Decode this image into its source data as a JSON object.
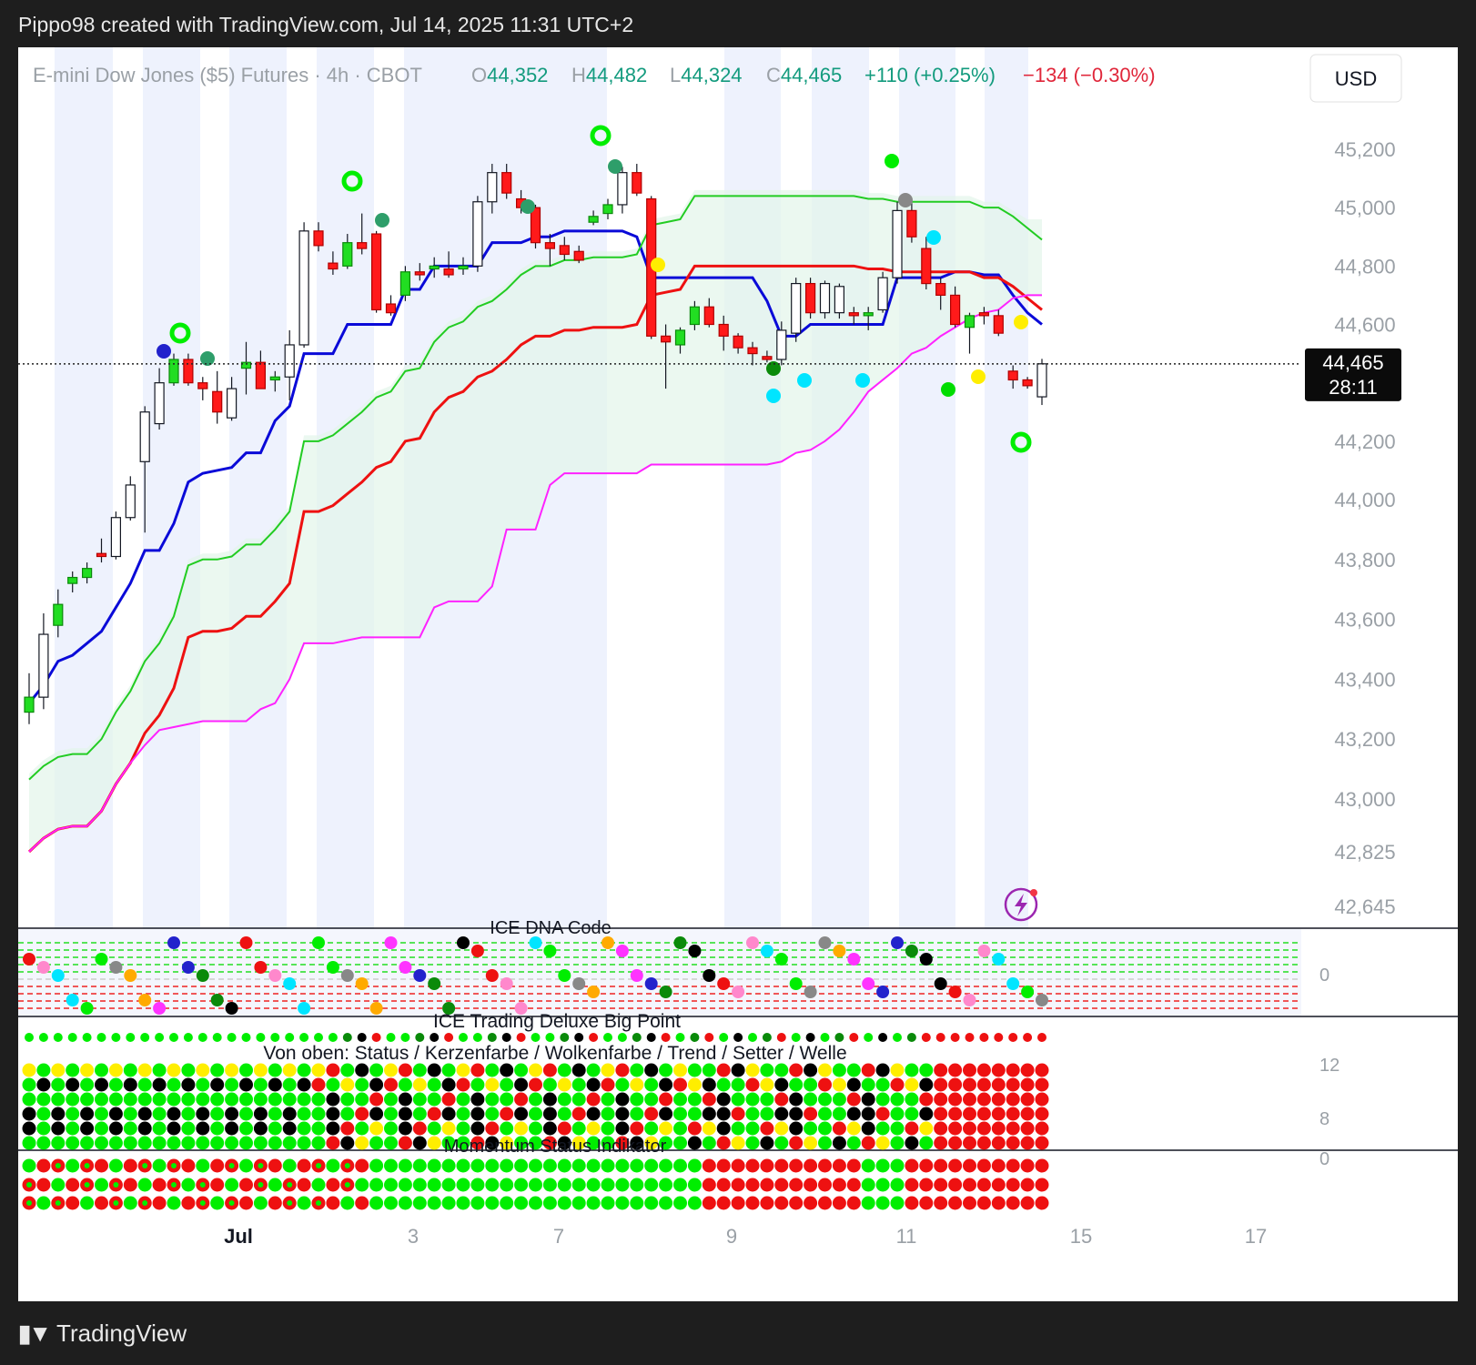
{
  "header": {
    "attribution": "Pippo98 created with TradingView.com, Jul 14, 2025 11:31 UTC+2"
  },
  "legend": {
    "symbol": "E-mini Dow Jones ($5) Futures · 4h · CBOT",
    "o_label": "O",
    "o_value": "44,352",
    "h_label": "H",
    "h_value": "44,482",
    "l_label": "L",
    "l_value": "44,324",
    "c_label": "C",
    "c_value": "44,465",
    "change": "+110 (+0.25%)",
    "change2": "−134 (−0.30%)"
  },
  "currency_button": "USD",
  "price_badge": {
    "price": "44,465",
    "countdown": "28:11"
  },
  "panes": {
    "dna_title": "ICE DNA Code",
    "dna_axis": "0",
    "bigpoint_title": "ICE Trading Deluxe Big Point",
    "bigpoint_subtitle": "Von oben: Status / Kerzenfarbe / Wolkenfarbe / Trend / Setter / Welle",
    "bigpoint_axis_top": "12",
    "bigpoint_axis_mid": "8",
    "bigpoint_axis_bottom": "0",
    "momentum_title": "Momentum Status Indikator"
  },
  "footer": {
    "brand": "TradingView"
  },
  "colors": {
    "up": "#22dd22",
    "down": "#ff1a1a",
    "neutral": "#ffffff",
    "kijun": "#0a0ad8",
    "tenkan_red": "#ee1111",
    "span_b": "#ff22ff",
    "green_line": "#22cc22",
    "weekend_band": "#eef2fd"
  },
  "chart_data": {
    "type": "candlestick",
    "symbol": "E-mini Dow Jones ($5) Futures",
    "interval": "4h",
    "ylim": [
      42645,
      45250
    ],
    "y_ticks": [
      "45,200",
      "45,000",
      "44,800",
      "44,600",
      "44,200",
      "44,000",
      "43,800",
      "43,600",
      "43,400",
      "43,200",
      "43,000",
      "42,825",
      "42,645"
    ],
    "x_ticks": [
      "Jul",
      "3",
      "7",
      "9",
      "11",
      "15",
      "17"
    ],
    "last_price": 44465,
    "candles": [
      {
        "o": 43290,
        "h": 43420,
        "l": 43250,
        "c": 43340
      },
      {
        "o": 43340,
        "h": 43620,
        "l": 43300,
        "c": 43550
      },
      {
        "o": 43580,
        "h": 43700,
        "l": 43540,
        "c": 43650
      },
      {
        "o": 43720,
        "h": 43760,
        "l": 43690,
        "c": 43740
      },
      {
        "o": 43740,
        "h": 43790,
        "l": 43720,
        "c": 43770
      },
      {
        "o": 43820,
        "h": 43870,
        "l": 43790,
        "c": 43810
      },
      {
        "o": 43810,
        "h": 43960,
        "l": 43800,
        "c": 43940
      },
      {
        "o": 43940,
        "h": 44080,
        "l": 43930,
        "c": 44050
      },
      {
        "o": 44130,
        "h": 44320,
        "l": 43890,
        "c": 44300
      },
      {
        "o": 44260,
        "h": 44450,
        "l": 44240,
        "c": 44400
      },
      {
        "o": 44400,
        "h": 44500,
        "l": 44390,
        "c": 44480
      },
      {
        "o": 44480,
        "h": 44500,
        "l": 44390,
        "c": 44400
      },
      {
        "o": 44400,
        "h": 44420,
        "l": 44340,
        "c": 44380
      },
      {
        "o": 44370,
        "h": 44440,
        "l": 44260,
        "c": 44300
      },
      {
        "o": 44280,
        "h": 44420,
        "l": 44270,
        "c": 44380
      },
      {
        "o": 44450,
        "h": 44540,
        "l": 44360,
        "c": 44470
      },
      {
        "o": 44470,
        "h": 44510,
        "l": 44390,
        "c": 44380
      },
      {
        "o": 44410,
        "h": 44440,
        "l": 44370,
        "c": 44420
      },
      {
        "o": 44420,
        "h": 44580,
        "l": 44340,
        "c": 44530
      },
      {
        "o": 44530,
        "h": 44950,
        "l": 44520,
        "c": 44920
      },
      {
        "o": 44920,
        "h": 44950,
        "l": 44850,
        "c": 44870
      },
      {
        "o": 44810,
        "h": 44850,
        "l": 44770,
        "c": 44790
      },
      {
        "o": 44800,
        "h": 44910,
        "l": 44790,
        "c": 44880
      },
      {
        "o": 44880,
        "h": 44980,
        "l": 44840,
        "c": 44860
      },
      {
        "o": 44910,
        "h": 44920,
        "l": 44640,
        "c": 44650
      },
      {
        "o": 44670,
        "h": 44700,
        "l": 44630,
        "c": 44640
      },
      {
        "o": 44700,
        "h": 44800,
        "l": 44680,
        "c": 44780
      },
      {
        "o": 44780,
        "h": 44810,
        "l": 44750,
        "c": 44770
      },
      {
        "o": 44790,
        "h": 44830,
        "l": 44760,
        "c": 44800
      },
      {
        "o": 44790,
        "h": 44850,
        "l": 44760,
        "c": 44770
      },
      {
        "o": 44790,
        "h": 44830,
        "l": 44770,
        "c": 44800
      },
      {
        "o": 44800,
        "h": 45040,
        "l": 44780,
        "c": 45020
      },
      {
        "o": 45020,
        "h": 45150,
        "l": 44980,
        "c": 45120
      },
      {
        "o": 45120,
        "h": 45150,
        "l": 45030,
        "c": 45050
      },
      {
        "o": 45030,
        "h": 45060,
        "l": 44980,
        "c": 45000
      },
      {
        "o": 45000,
        "h": 45010,
        "l": 44860,
        "c": 44880
      },
      {
        "o": 44880,
        "h": 44910,
        "l": 44800,
        "c": 44860
      },
      {
        "o": 44870,
        "h": 44900,
        "l": 44820,
        "c": 44840
      },
      {
        "o": 44850,
        "h": 44870,
        "l": 44810,
        "c": 44820
      },
      {
        "o": 44950,
        "h": 44990,
        "l": 44940,
        "c": 44970
      },
      {
        "o": 44980,
        "h": 45030,
        "l": 44960,
        "c": 45010
      },
      {
        "o": 45010,
        "h": 45140,
        "l": 44980,
        "c": 45120
      },
      {
        "o": 45120,
        "h": 45150,
        "l": 45040,
        "c": 45050
      },
      {
        "o": 45030,
        "h": 45040,
        "l": 44550,
        "c": 44560
      },
      {
        "o": 44560,
        "h": 44600,
        "l": 44380,
        "c": 44540
      },
      {
        "o": 44530,
        "h": 44590,
        "l": 44500,
        "c": 44580
      },
      {
        "o": 44600,
        "h": 44680,
        "l": 44580,
        "c": 44660
      },
      {
        "o": 44660,
        "h": 44690,
        "l": 44590,
        "c": 44600
      },
      {
        "o": 44600,
        "h": 44630,
        "l": 44510,
        "c": 44560
      },
      {
        "o": 44560,
        "h": 44570,
        "l": 44500,
        "c": 44520
      },
      {
        "o": 44520,
        "h": 44540,
        "l": 44460,
        "c": 44500
      },
      {
        "o": 44490,
        "h": 44510,
        "l": 44470,
        "c": 44480
      },
      {
        "o": 44480,
        "h": 44610,
        "l": 44460,
        "c": 44580
      },
      {
        "o": 44570,
        "h": 44760,
        "l": 44540,
        "c": 44740
      },
      {
        "o": 44740,
        "h": 44760,
        "l": 44620,
        "c": 44640
      },
      {
        "o": 44640,
        "h": 44750,
        "l": 44620,
        "c": 44740
      },
      {
        "o": 44640,
        "h": 44740,
        "l": 44620,
        "c": 44730
      },
      {
        "o": 44640,
        "h": 44660,
        "l": 44600,
        "c": 44630
      },
      {
        "o": 44630,
        "h": 44660,
        "l": 44580,
        "c": 44640
      },
      {
        "o": 44650,
        "h": 44780,
        "l": 44640,
        "c": 44760
      },
      {
        "o": 44760,
        "h": 45020,
        "l": 44740,
        "c": 44990
      },
      {
        "o": 44990,
        "h": 45030,
        "l": 44880,
        "c": 44900
      },
      {
        "o": 44860,
        "h": 44900,
        "l": 44720,
        "c": 44740
      },
      {
        "o": 44740,
        "h": 44760,
        "l": 44650,
        "c": 44700
      },
      {
        "o": 44700,
        "h": 44730,
        "l": 44590,
        "c": 44600
      },
      {
        "o": 44590,
        "h": 44640,
        "l": 44500,
        "c": 44630
      },
      {
        "o": 44640,
        "h": 44660,
        "l": 44600,
        "c": 44630
      },
      {
        "o": 44630,
        "h": 44650,
        "l": 44560,
        "c": 44570
      },
      {
        "o": 44440,
        "h": 44460,
        "l": 44380,
        "c": 44410
      },
      {
        "o": 44410,
        "h": 44420,
        "l": 44380,
        "c": 44390
      },
      {
        "o": 44352,
        "h": 44482,
        "l": 44324,
        "c": 44465
      }
    ],
    "series": [
      {
        "name": "",
        "role": "kijun_blue",
        "values": [
          43320,
          43380,
          43460,
          43480,
          43520,
          43560,
          43640,
          43720,
          43830,
          43830,
          43920,
          44060,
          44090,
          44100,
          44110,
          44160,
          44160,
          44270,
          44320,
          44500,
          44500,
          44500,
          44600,
          44600,
          44600,
          44600,
          44720,
          44720,
          44800,
          44800,
          44800,
          44800,
          44880,
          44880,
          44880,
          44900,
          44900,
          44920,
          44920,
          44920,
          44920,
          44920,
          44900,
          44760,
          44760,
          44760,
          44760,
          44760,
          44760,
          44760,
          44760,
          44680,
          44560,
          44560,
          44600,
          44600,
          44600,
          44600,
          44600,
          44600,
          44760,
          44760,
          44760,
          44760,
          44780,
          44780,
          44770,
          44770,
          44700,
          44640,
          44600
        ]
      },
      {
        "name": "",
        "role": "red_line",
        "values": [
          42825,
          42870,
          42900,
          42910,
          42910,
          42960,
          43050,
          43120,
          43220,
          43280,
          43370,
          43540,
          43560,
          43560,
          43570,
          43610,
          43610,
          43660,
          43720,
          43960,
          43960,
          43980,
          44020,
          44060,
          44110,
          44130,
          44200,
          44210,
          44300,
          44350,
          44370,
          44420,
          44440,
          44480,
          44530,
          44560,
          44560,
          44580,
          44580,
          44590,
          44590,
          44590,
          44600,
          44700,
          44710,
          44720,
          44800,
          44800,
          44800,
          44800,
          44800,
          44800,
          44800,
          44800,
          44800,
          44800,
          44800,
          44800,
          44790,
          44790,
          44780,
          44780,
          44780,
          44780,
          44780,
          44780,
          44760,
          44760,
          44730,
          44690,
          44650
        ]
      },
      {
        "name": "",
        "role": "span_b_magenta",
        "values": [
          42825,
          42870,
          42900,
          42910,
          42910,
          42960,
          43050,
          43120,
          43180,
          43230,
          43240,
          43250,
          43260,
          43260,
          43260,
          43260,
          43300,
          43320,
          43400,
          43520,
          43520,
          43520,
          43530,
          43540,
          43540,
          43540,
          43540,
          43540,
          43640,
          43660,
          43660,
          43660,
          43710,
          43900,
          43900,
          43900,
          44050,
          44090,
          44090,
          44090,
          44090,
          44090,
          44090,
          44120,
          44120,
          44120,
          44120,
          44120,
          44120,
          44120,
          44120,
          44120,
          44130,
          44160,
          44170,
          44200,
          44240,
          44300,
          44370,
          44410,
          44450,
          44500,
          44520,
          44560,
          44590,
          44620,
          44640,
          44650,
          44690,
          44700,
          44700
        ]
      }
    ]
  }
}
